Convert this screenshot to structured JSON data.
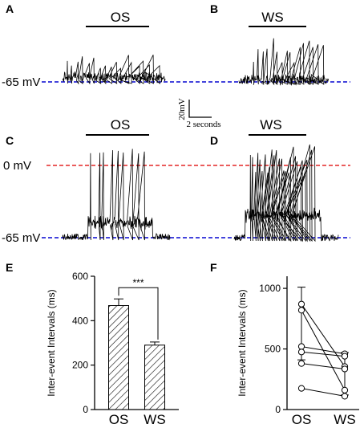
{
  "figure": {
    "panel_labels": [
      "A",
      "B",
      "C",
      "D",
      "E",
      "F"
    ],
    "conditions": [
      "OS",
      "WS"
    ],
    "resting_label": "-65 mV",
    "zero_label": "0 mV",
    "scale_voltage": "20mV",
    "scale_time": "2 seconds",
    "colors": {
      "resting_line": "#2a2ad8",
      "zero_line": "#e84545",
      "trace": "#000000"
    }
  },
  "chart_data": [
    {
      "panel": "E",
      "type": "bar",
      "categories": [
        "OS",
        "WS"
      ],
      "values": [
        468,
        290
      ],
      "errors": [
        30,
        14
      ],
      "bar_pattern": "diagonal-hatch",
      "ylabel": "Inter-event Intervals (ms)",
      "ylim": [
        0,
        600
      ],
      "yticks": [
        0,
        200,
        400,
        600
      ],
      "significance": "***"
    },
    {
      "panel": "F",
      "type": "line",
      "categories": [
        "OS",
        "WS"
      ],
      "series": [
        {
          "values": [
            870,
            355
          ]
        },
        {
          "values": [
            820,
            160
          ]
        },
        {
          "values": [
            520,
            460
          ]
        },
        {
          "values": [
            475,
            440
          ]
        },
        {
          "values": [
            380,
            335
          ]
        },
        {
          "values": [
            175,
            110
          ]
        }
      ],
      "os_error": {
        "mean": 540,
        "upper": 1010,
        "lower": 410
      },
      "ws_error": {
        "mean": 310,
        "upper": 470,
        "lower": 120
      },
      "ylabel": "Inter-event Intervals (ms)",
      "ylim": [
        0,
        1100
      ],
      "yticks": [
        0,
        500,
        1000
      ]
    }
  ]
}
